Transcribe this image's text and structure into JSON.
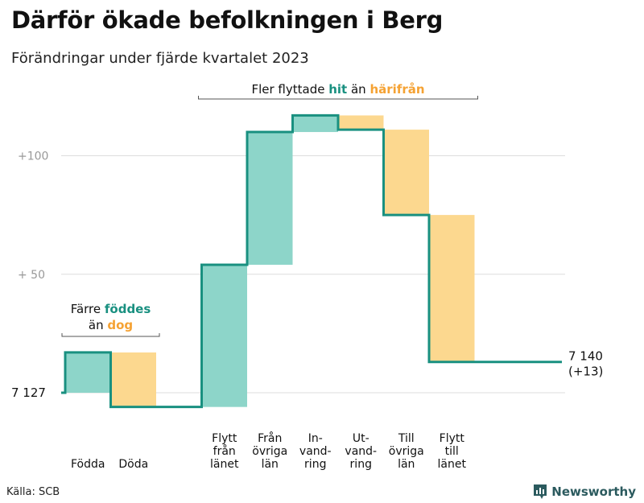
{
  "header": {
    "title": "Därför ökade befolkningen i Berg",
    "subtitle": "Förändringar under fjärde kvartalet 2023"
  },
  "footer": {
    "source": "Källa: SCB",
    "brand": "Newsworthy"
  },
  "colors": {
    "increase": "#8dd5c9",
    "decrease": "#fcd88f",
    "line": "#199080",
    "grid": "#dddddd",
    "teal_text": "#199080",
    "orange_text": "#f5a233"
  },
  "chart_data": {
    "type": "waterfall",
    "start_value": 7127,
    "end_value": 7140,
    "end_label": "7 140",
    "end_change_label": "(+13)",
    "start_label": "7  127",
    "y_ticks": [
      {
        "value": 50,
        "label": "+  50"
      },
      {
        "value": 100,
        "label": "+100"
      }
    ],
    "ylim": [
      -6,
      121
    ],
    "steps": [
      {
        "label_lines": [
          "Födda"
        ],
        "delta": 17,
        "kind": "increase"
      },
      {
        "label_lines": [
          "Döda"
        ],
        "delta": -23,
        "kind": "decrease"
      },
      {
        "label_lines": [],
        "delta": 0,
        "kind": "gap"
      },
      {
        "label_lines": [
          "Flytt",
          "från",
          "länet"
        ],
        "delta": 60,
        "kind": "increase"
      },
      {
        "label_lines": [
          "Från",
          "övriga",
          "län"
        ],
        "delta": 56,
        "kind": "increase"
      },
      {
        "label_lines": [
          "In-",
          "vand-",
          "ring"
        ],
        "delta": 7,
        "kind": "increase"
      },
      {
        "label_lines": [
          "Ut-",
          "vand-",
          "ring"
        ],
        "delta": -6,
        "kind": "decrease"
      },
      {
        "label_lines": [
          "Till",
          "övriga",
          "län"
        ],
        "delta": -36,
        "kind": "decrease"
      },
      {
        "label_lines": [
          "Flytt",
          "till",
          "länet"
        ],
        "delta": -62,
        "kind": "decrease"
      }
    ],
    "annotations": [
      {
        "lines": [
          [
            {
              "text": "Färre "
            },
            {
              "text": "föddes",
              "style": "teal"
            }
          ],
          [
            {
              "text": "än "
            },
            {
              "text": "dog",
              "style": "orange"
            }
          ]
        ],
        "bracket_from_step": 0,
        "bracket_to_step": 1
      },
      {
        "lines": [
          [
            {
              "text": "Fler flyttade "
            },
            {
              "text": "hit",
              "style": "teal"
            },
            {
              "text": " än "
            },
            {
              "text": "härifrån",
              "style": "orange"
            }
          ]
        ],
        "bracket_from_step": 3,
        "bracket_to_step": 8
      }
    ]
  }
}
